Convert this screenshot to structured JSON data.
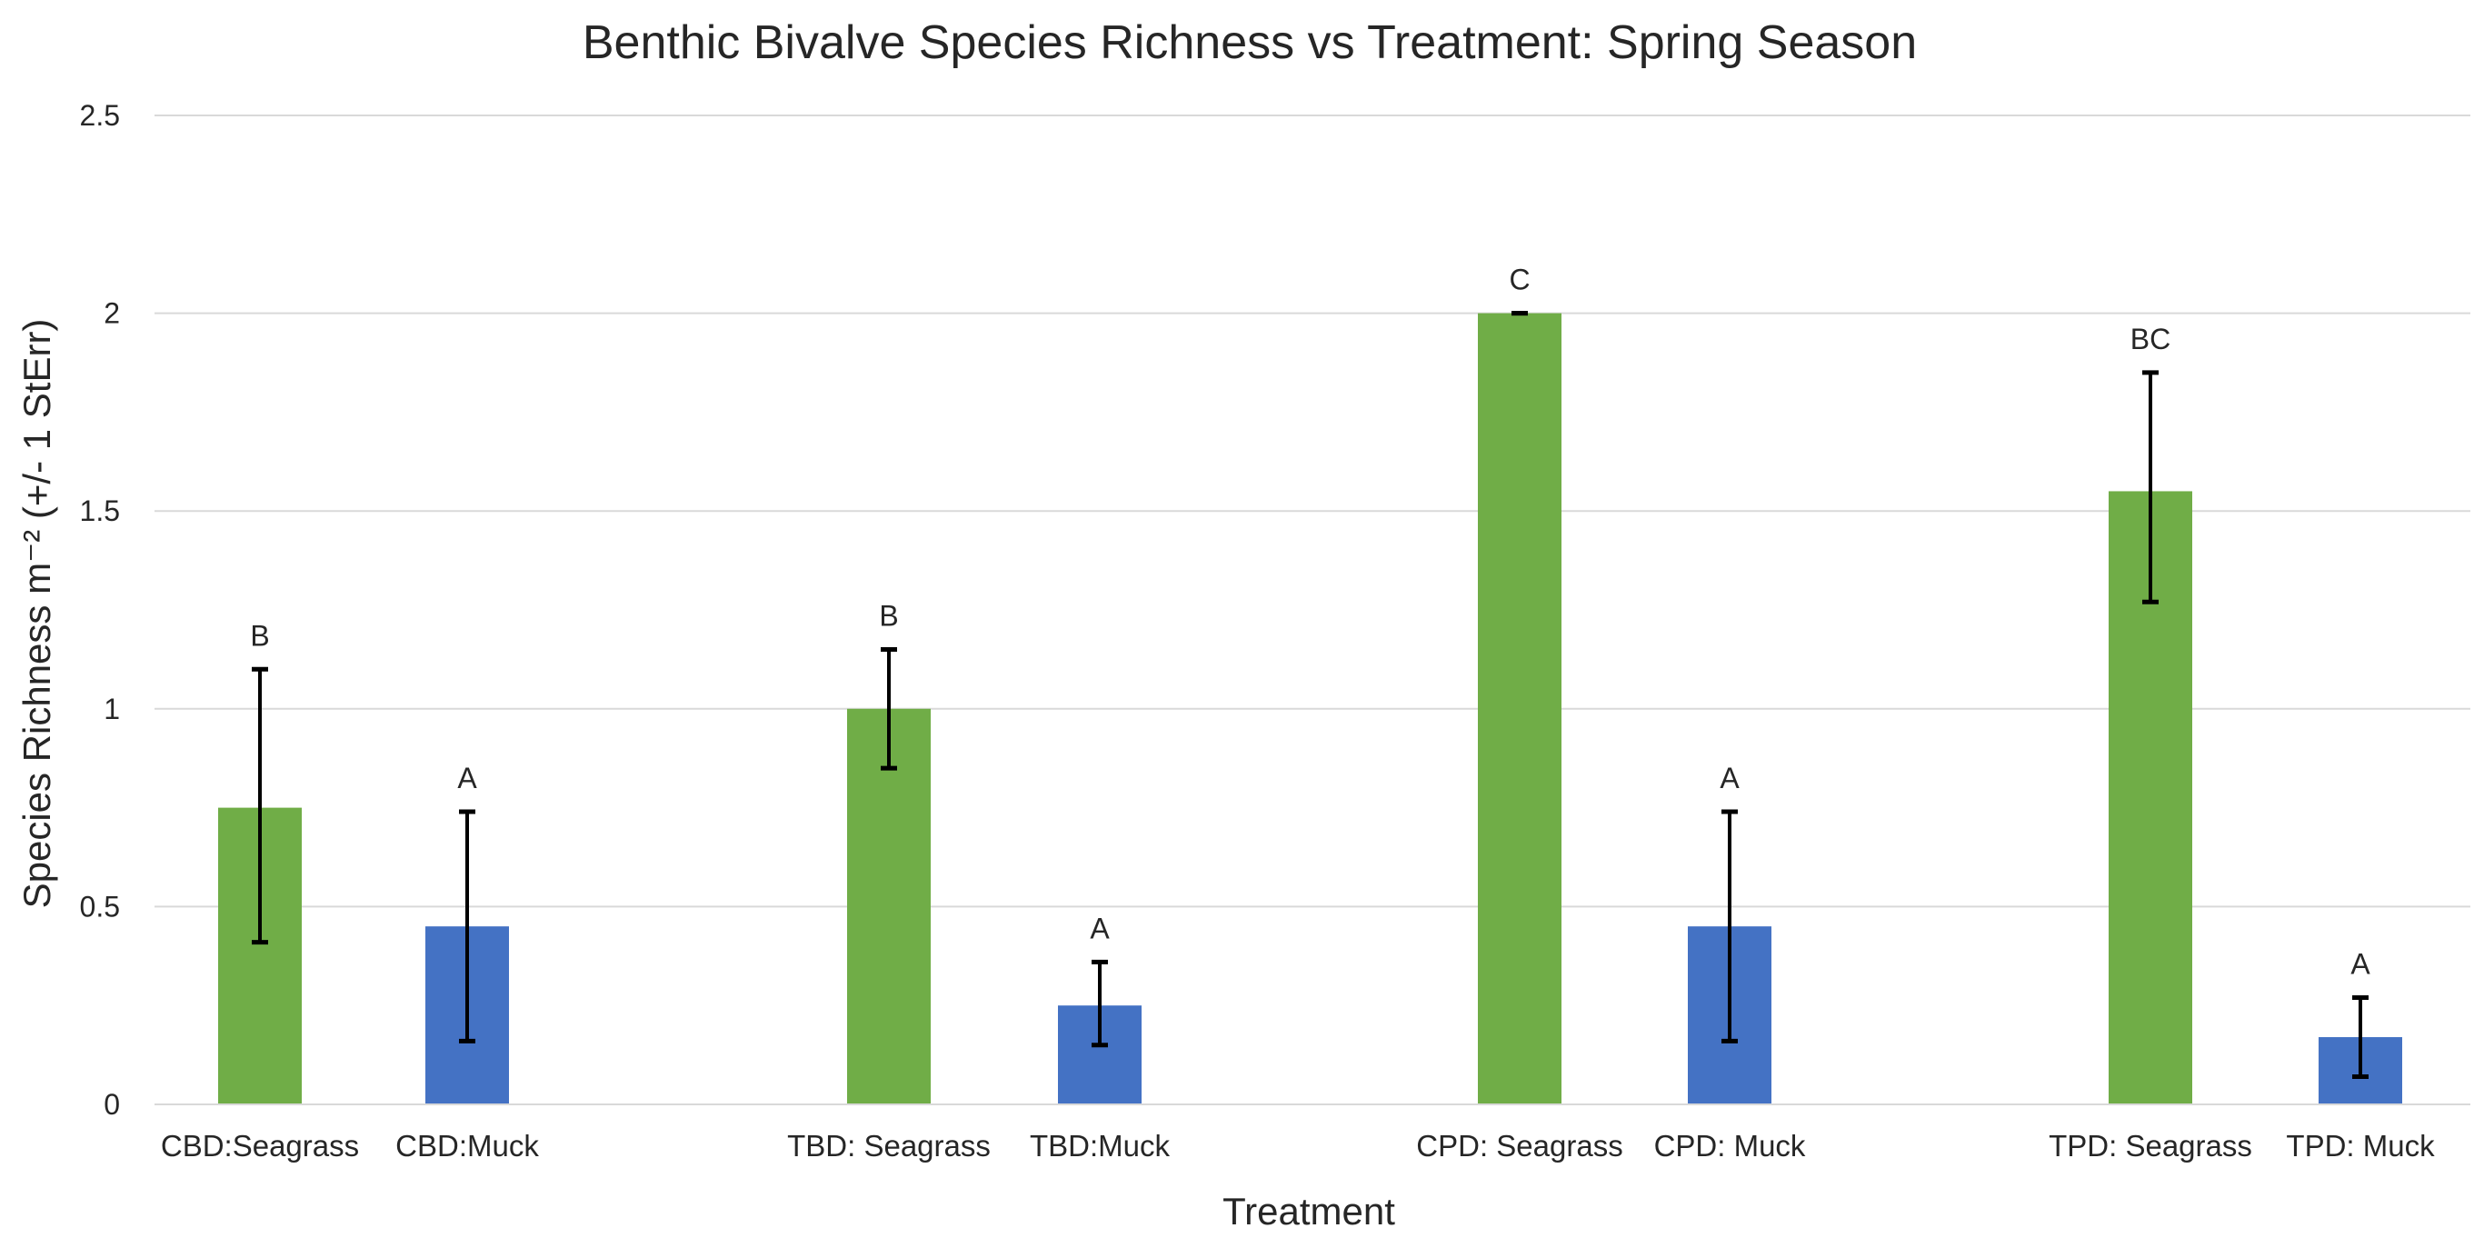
{
  "chart_data": {
    "type": "bar",
    "title": "Benthic Bivalve Species Richness vs Treatment: Spring Season",
    "xlabel": "Treatment",
    "ylabel": "Species Richness m⁻² (+/- 1 StErr)",
    "ylim": [
      0,
      2.5
    ],
    "yticks": [
      "0",
      "0.5",
      "1",
      "1.5",
      "2",
      "2.5"
    ],
    "grid": true,
    "legend": "none",
    "colors": {
      "seagrass": "#70ad47",
      "muck": "#4472c4",
      "grid": "#d9d9d9",
      "error": "#000000"
    },
    "bars": [
      {
        "category": "CBD:Seagrass",
        "habitat": "seagrass",
        "value": 0.75,
        "err_low": 0.41,
        "err_high": 1.1,
        "label": "B"
      },
      {
        "category": "CBD:Muck",
        "habitat": "muck",
        "value": 0.45,
        "err_low": 0.16,
        "err_high": 0.74,
        "label": "A"
      },
      {
        "category": "TBD: Seagrass",
        "habitat": "seagrass",
        "value": 1.0,
        "err_low": 0.85,
        "err_high": 1.15,
        "label": "B"
      },
      {
        "category": "TBD:Muck",
        "habitat": "muck",
        "value": 0.25,
        "err_low": 0.15,
        "err_high": 0.36,
        "label": "A"
      },
      {
        "category": "CPD: Seagrass",
        "habitat": "seagrass",
        "value": 2.0,
        "err_low": 2.0,
        "err_high": 2.0,
        "label": "C"
      },
      {
        "category": "CPD: Muck",
        "habitat": "muck",
        "value": 0.45,
        "err_low": 0.16,
        "err_high": 0.74,
        "label": "A"
      },
      {
        "category": "TPD: Seagrass",
        "habitat": "seagrass",
        "value": 1.55,
        "err_low": 1.27,
        "err_high": 1.85,
        "label": "BC"
      },
      {
        "category": "TPD: Muck",
        "habitat": "muck",
        "value": 0.17,
        "err_low": 0.07,
        "err_high": 0.27,
        "label": "A"
      }
    ]
  }
}
